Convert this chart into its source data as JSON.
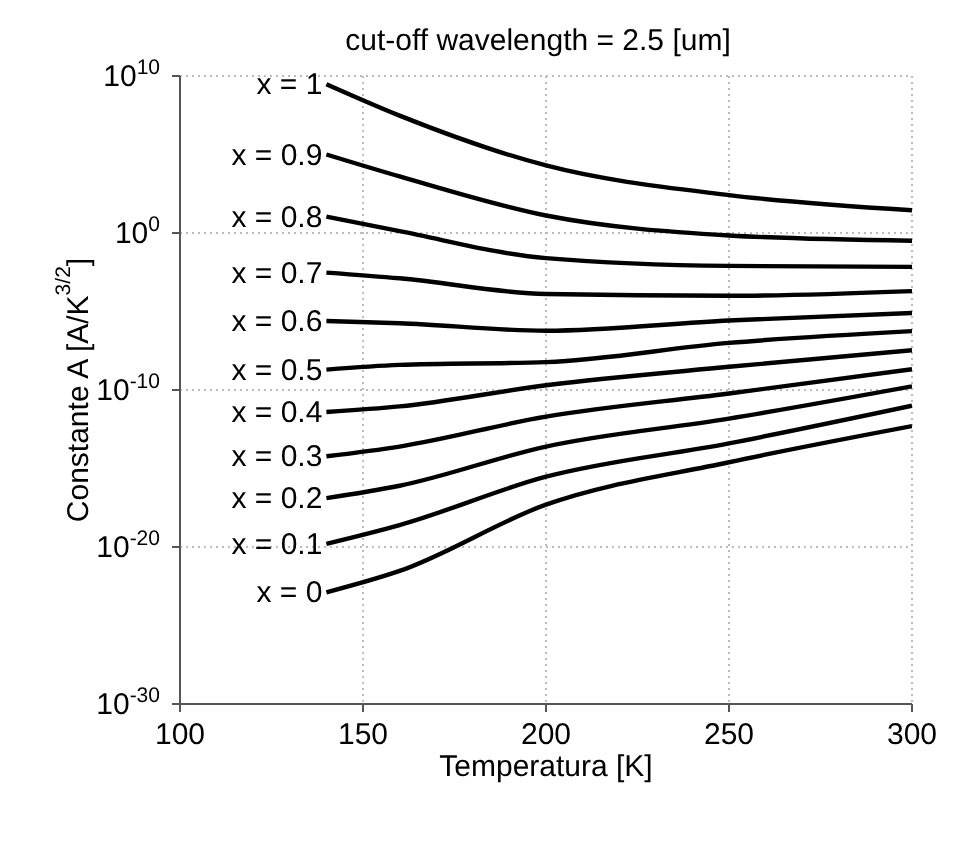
{
  "chart_data": {
    "type": "line",
    "title": "cut-off wavelength = 2.5 [um]",
    "xlabel": "Temperatura [K]",
    "ylabel": "Constante A [A/K$^{3/2}$]",
    "log": "y",
    "grid": true,
    "marker": "none",
    "line_style": "solid",
    "xlim": [
      100,
      300
    ],
    "xticks": [
      100,
      150,
      200,
      250,
      300
    ],
    "ylim": [
      1e-30,
      10000000000.0
    ],
    "yticks": [
      {
        "value": 1e-30,
        "label": "10$^{-30}$"
      },
      {
        "value": 1e-20,
        "label": "10$^{-20}$"
      },
      {
        "value": 1e-10,
        "label": "10$^{-10}$"
      },
      {
        "value": 1,
        "label": "10$^{0}$"
      },
      {
        "value": 10000000000.0,
        "label": "10$^{10}$"
      }
    ],
    "x": [
      140,
      160,
      200,
      250,
      300
    ],
    "series": [
      {
        "name": "x = 1",
        "color": "#000000",
        "values": [
          3000000000.0,
          30000000.0,
          20000.0,
          260,
          28
        ]
      },
      {
        "name": "x = 0.9",
        "color": "#000000",
        "values": [
          100000.0,
          4000.0,
          13,
          0.7,
          0.32
        ]
      },
      {
        "name": "x = 0.8",
        "color": "#000000",
        "values": [
          11,
          1.3,
          0.025,
          0.008,
          0.007
        ]
      },
      {
        "name": "x = 0.7",
        "color": "#000000",
        "values": [
          0.003,
          0.0013,
          0.00013,
          0.0001,
          0.0002
        ]
      },
      {
        "name": "x = 0.6",
        "color": "#000000",
        "values": [
          2.5e-06,
          1.8e-06,
          6e-07,
          2.7e-06,
          8e-06
        ]
      },
      {
        "name": "x = 0.5",
        "color": "#000000",
        "values": [
          2e-09,
          4e-09,
          6e-09,
          1e-07,
          5.6e-07
        ]
      },
      {
        "name": "x = 0.4",
        "color": "#000000",
        "values": [
          4e-12,
          9e-12,
          2e-10,
          3e-09,
          3.4e-08
        ]
      },
      {
        "name": "x = 0.3",
        "color": "#000000",
        "values": [
          6e-15,
          2.5e-14,
          2e-12,
          6e-11,
          2.1e-09
        ]
      },
      {
        "name": "x = 0.2",
        "color": "#000000",
        "values": [
          1.3e-17,
          8e-17,
          2.5e-14,
          1.5e-12,
          1.7e-10
        ]
      },
      {
        "name": "x = 0.1",
        "color": "#000000",
        "values": [
          1.6e-20,
          2.5e-19,
          3e-16,
          4e-14,
          1e-11
        ]
      },
      {
        "name": "x = 0",
        "color": "#000000",
        "values": [
          1.3e-23,
          3e-22,
          5e-18,
          2.5e-15,
          5e-13
        ]
      }
    ]
  }
}
